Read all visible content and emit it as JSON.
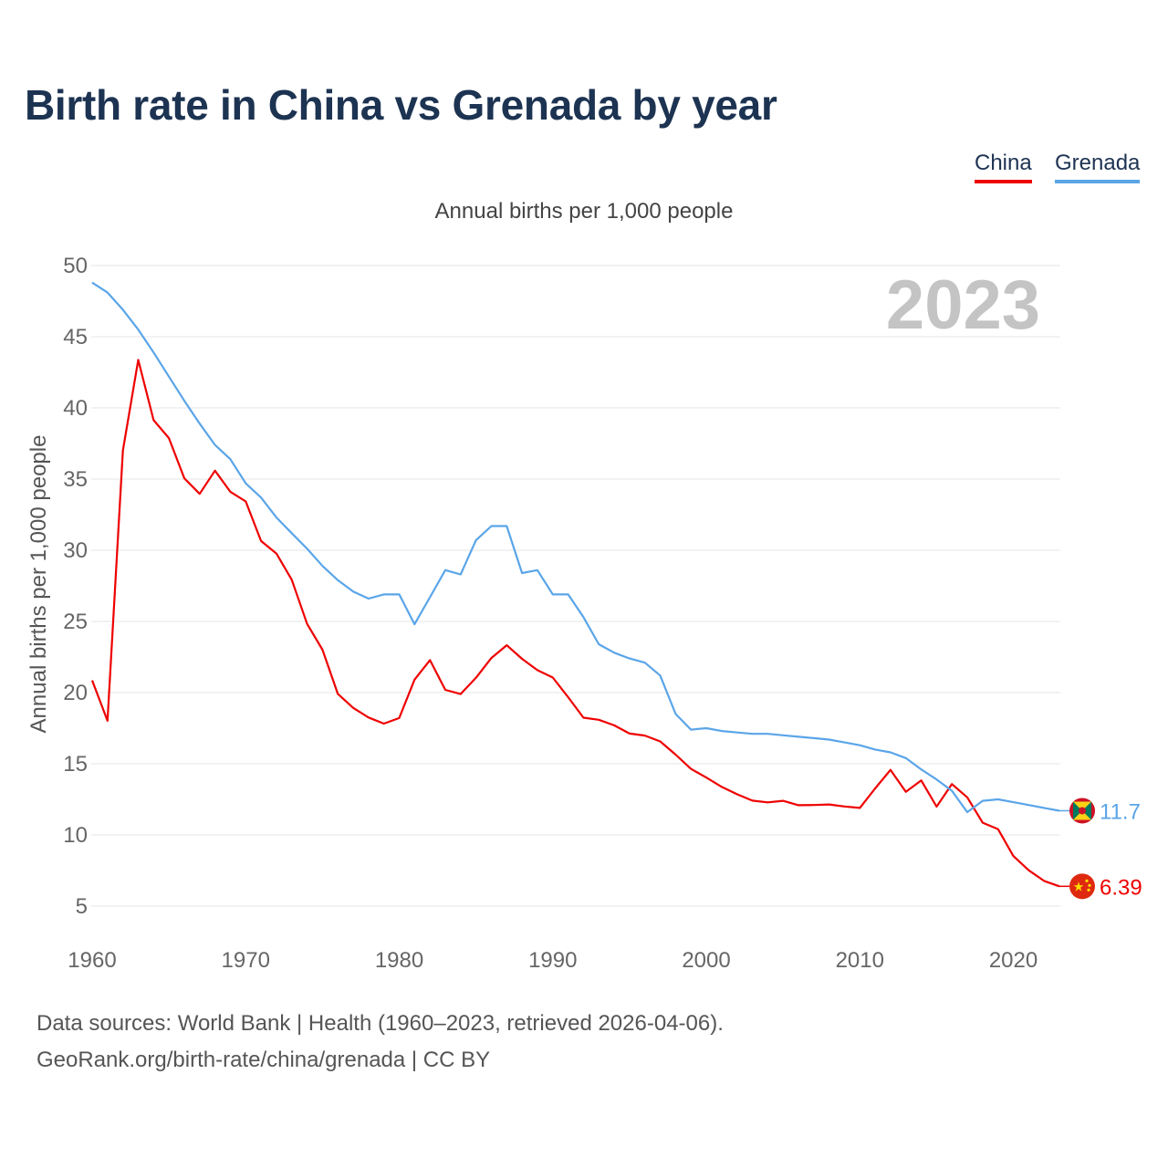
{
  "title": "Birth rate in China vs Grenada by year",
  "subtitle": "Annual births per 1,000 people",
  "legend": [
    {
      "name": "China",
      "color": "#ee0000"
    },
    {
      "name": "Grenada",
      "color": "#5aa5e8"
    }
  ],
  "footer": {
    "source": "Data sources: World Bank | Health (1960–2023, retrieved 2026-04-06).",
    "credit": "GeoRank.org/birth-rate/china/grenada | CC BY"
  },
  "chart_data": {
    "type": "line",
    "title": "Birth rate in China vs Grenada by year",
    "xlabel": "",
    "ylabel": "Annual births per 1,000 people",
    "year_watermark": "2023",
    "xlim": [
      1960,
      2023
    ],
    "ylim": [
      4,
      50
    ],
    "yticks": [
      5,
      10,
      15,
      20,
      25,
      30,
      35,
      40,
      45,
      50
    ],
    "xticks": [
      1960,
      1970,
      1980,
      1990,
      2000,
      2010,
      2020
    ],
    "grid": true,
    "legend_position": "top-right",
    "x": [
      1960,
      1961,
      1962,
      1963,
      1964,
      1965,
      1966,
      1967,
      1968,
      1969,
      1970,
      1971,
      1972,
      1973,
      1974,
      1975,
      1976,
      1977,
      1978,
      1979,
      1980,
      1981,
      1982,
      1983,
      1984,
      1985,
      1986,
      1987,
      1988,
      1989,
      1990,
      1991,
      1992,
      1993,
      1994,
      1995,
      1996,
      1997,
      1998,
      1999,
      2000,
      2001,
      2002,
      2003,
      2004,
      2005,
      2006,
      2007,
      2008,
      2009,
      2010,
      2011,
      2012,
      2013,
      2014,
      2015,
      2016,
      2017,
      2018,
      2019,
      2020,
      2021,
      2022,
      2023
    ],
    "series": [
      {
        "name": "China",
        "color": "#ee0000",
        "end_label": "6.39",
        "flag_icon": "china-flag-icon",
        "values": [
          20.86,
          18.02,
          37.01,
          43.37,
          39.14,
          37.88,
          35.05,
          33.96,
          35.59,
          34.11,
          33.43,
          30.65,
          29.77,
          27.93,
          24.82,
          23.01,
          19.91,
          18.93,
          18.25,
          17.82,
          18.21,
          20.91,
          22.28,
          20.19,
          19.9,
          21.04,
          22.43,
          23.33,
          22.37,
          21.58,
          21.06,
          19.68,
          18.24,
          18.09,
          17.7,
          17.12,
          16.98,
          16.57,
          15.64,
          14.64,
          14.03,
          13.38,
          12.86,
          12.41,
          12.29,
          12.4,
          12.09,
          12.1,
          12.14,
          12.0,
          11.9,
          13.27,
          14.57,
          13.03,
          13.83,
          11.99,
          13.57,
          12.64,
          10.86,
          10.41,
          8.52,
          7.52,
          6.77,
          6.39
        ]
      },
      {
        "name": "Grenada",
        "color": "#5aa5e8",
        "end_label": "11.7",
        "flag_icon": "grenada-flag-icon",
        "values": [
          48.8,
          48.1,
          46.9,
          45.5,
          43.9,
          42.2,
          40.5,
          38.9,
          37.4,
          36.4,
          34.7,
          33.7,
          32.3,
          31.2,
          30.1,
          28.9,
          27.9,
          27.1,
          26.6,
          26.9,
          26.9,
          24.8,
          26.7,
          28.6,
          28.3,
          30.7,
          31.7,
          31.7,
          28.4,
          28.6,
          26.9,
          26.9,
          25.3,
          23.4,
          22.8,
          22.4,
          22.1,
          21.2,
          18.5,
          17.4,
          17.5,
          17.3,
          17.2,
          17.1,
          17.1,
          17.0,
          16.9,
          16.8,
          16.7,
          16.5,
          16.3,
          16.0,
          15.8,
          15.4,
          14.6,
          13.9,
          13.1,
          11.6,
          12.4,
          12.5,
          12.3,
          12.1,
          11.9,
          11.7
        ]
      }
    ]
  }
}
